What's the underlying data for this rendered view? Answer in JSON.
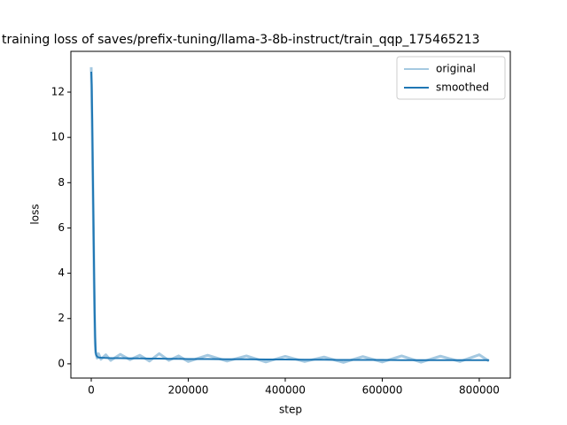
{
  "chart_data": {
    "type": "line",
    "title": "training loss of saves/prefix-tuning/llama-3-8b-instruct/train_qqp_175465213",
    "x_label": "step",
    "y_label": "loss",
    "x": [
      0,
      1000,
      2000,
      3000,
      4000,
      5000,
      6000,
      7000,
      8000,
      9000,
      10000,
      12000,
      15000,
      20000,
      30000,
      40000,
      60000,
      80000,
      100000,
      120000,
      140000,
      160000,
      180000,
      200000,
      240000,
      280000,
      320000,
      360000,
      400000,
      440000,
      480000,
      520000,
      560000,
      600000,
      640000,
      680000,
      720000,
      760000,
      800000,
      820000
    ],
    "series": [
      {
        "name": "original",
        "color": "#a5c9e1",
        "values": [
          13.1,
          11.5,
          10.2,
          8.5,
          7.0,
          5.2,
          3.5,
          2.0,
          0.9,
          0.5,
          0.45,
          0.25,
          0.45,
          0.2,
          0.4,
          0.15,
          0.42,
          0.18,
          0.38,
          0.12,
          0.45,
          0.15,
          0.35,
          0.1,
          0.38,
          0.12,
          0.35,
          0.08,
          0.33,
          0.1,
          0.3,
          0.06,
          0.32,
          0.08,
          0.35,
          0.07,
          0.34,
          0.1,
          0.4,
          0.12
        ]
      },
      {
        "name": "smoothed",
        "color": "#1f77b4",
        "values": [
          12.9,
          12.3,
          10.8,
          9.0,
          7.2,
          5.5,
          3.8,
          2.3,
          1.2,
          0.6,
          0.4,
          0.32,
          0.28,
          0.27,
          0.26,
          0.25,
          0.25,
          0.24,
          0.24,
          0.23,
          0.23,
          0.22,
          0.22,
          0.21,
          0.21,
          0.2,
          0.2,
          0.19,
          0.19,
          0.18,
          0.18,
          0.17,
          0.17,
          0.17,
          0.16,
          0.16,
          0.16,
          0.16,
          0.16,
          0.16
        ]
      }
    ],
    "xlim": [
      -42000,
      864000
    ],
    "xticks": [
      0,
      200000,
      400000,
      600000,
      800000
    ],
    "ylim": [
      -0.63,
      13.8
    ],
    "yticks": [
      0,
      2,
      4,
      6,
      8,
      10,
      12
    ],
    "legend": "upper right"
  }
}
